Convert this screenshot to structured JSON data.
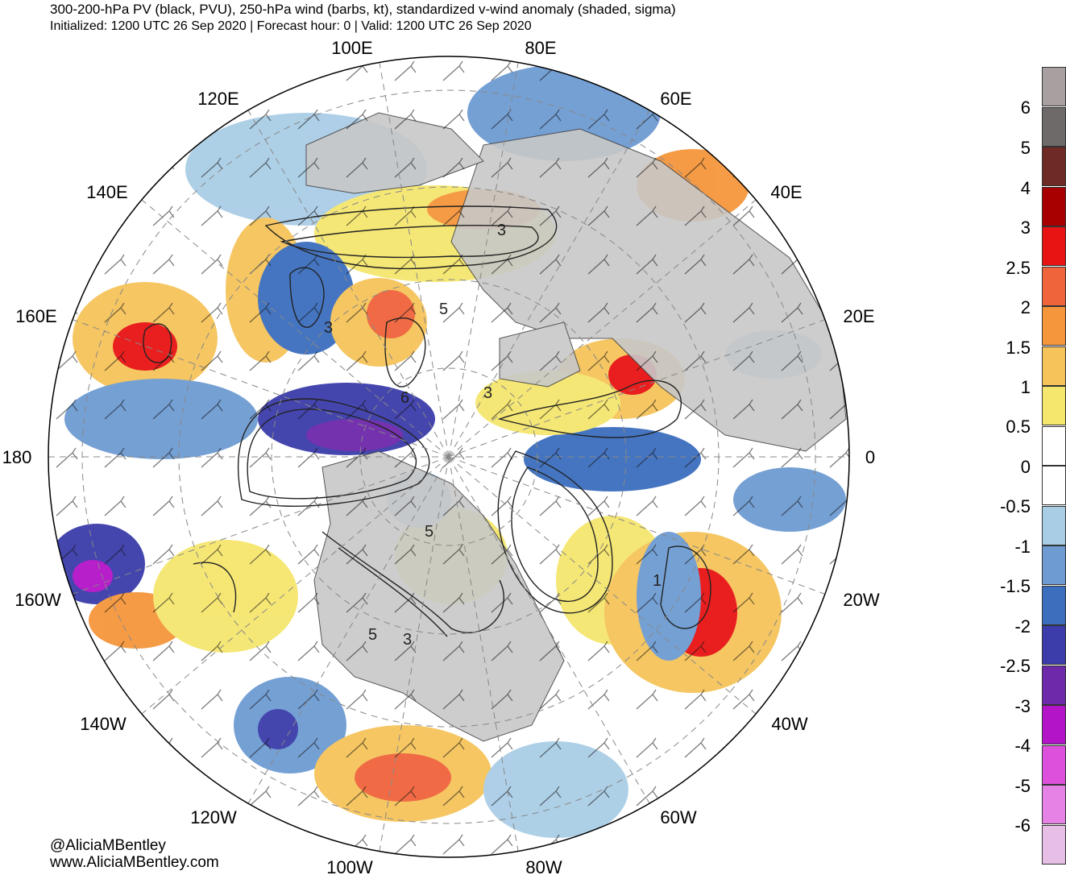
{
  "header": {
    "title": "300-200-hPa PV (black, PVU), 250-hPa wind (barbs, kt), standardized v-wind anomaly (shaded, sigma)",
    "subtitle": "Initialized: 1200 UTC 26 Sep 2020 | Forecast hour: 0 | Valid: 1200 UTC 26 Sep 2020"
  },
  "map": {
    "projection": "polar stereographic (north pole)",
    "longitude_labels": [
      "100E",
      "80E",
      "120E",
      "60E",
      "140E",
      "40E",
      "160E",
      "20E",
      "180",
      "0",
      "160W",
      "20W",
      "140W",
      "40W",
      "120W",
      "60W",
      "100W",
      "80W"
    ],
    "contour_labels": [
      "3",
      "5",
      "3",
      "6",
      "3",
      "5",
      "5",
      "3",
      "1"
    ],
    "land_color": "#c8c8c8",
    "contour_color": "#222222"
  },
  "colorbar": {
    "labels": [
      "6",
      "5",
      "4",
      "3",
      "2.5",
      "2",
      "1.5",
      "1",
      "0.5",
      "0",
      "-0.5",
      "-1",
      "-1.5",
      "-2",
      "-2.5",
      "-3",
      "-4",
      "-5",
      "-6"
    ],
    "colors": [
      "#a8a0a0",
      "#6e6a6a",
      "#6e2a24",
      "#a80000",
      "#e81414",
      "#f0643c",
      "#f5963c",
      "#f5c35a",
      "#f5e66e",
      "#ffffff",
      "#ffffff",
      "#aacde6",
      "#6e9bd2",
      "#3c6ebe",
      "#3c3caa",
      "#6e28aa",
      "#b414c8",
      "#dc50dc",
      "#e682e6",
      "#e6bee6"
    ]
  },
  "credits": {
    "twitter": "@AliciaMBentley",
    "website": "www.AliciaMBentley.com"
  }
}
